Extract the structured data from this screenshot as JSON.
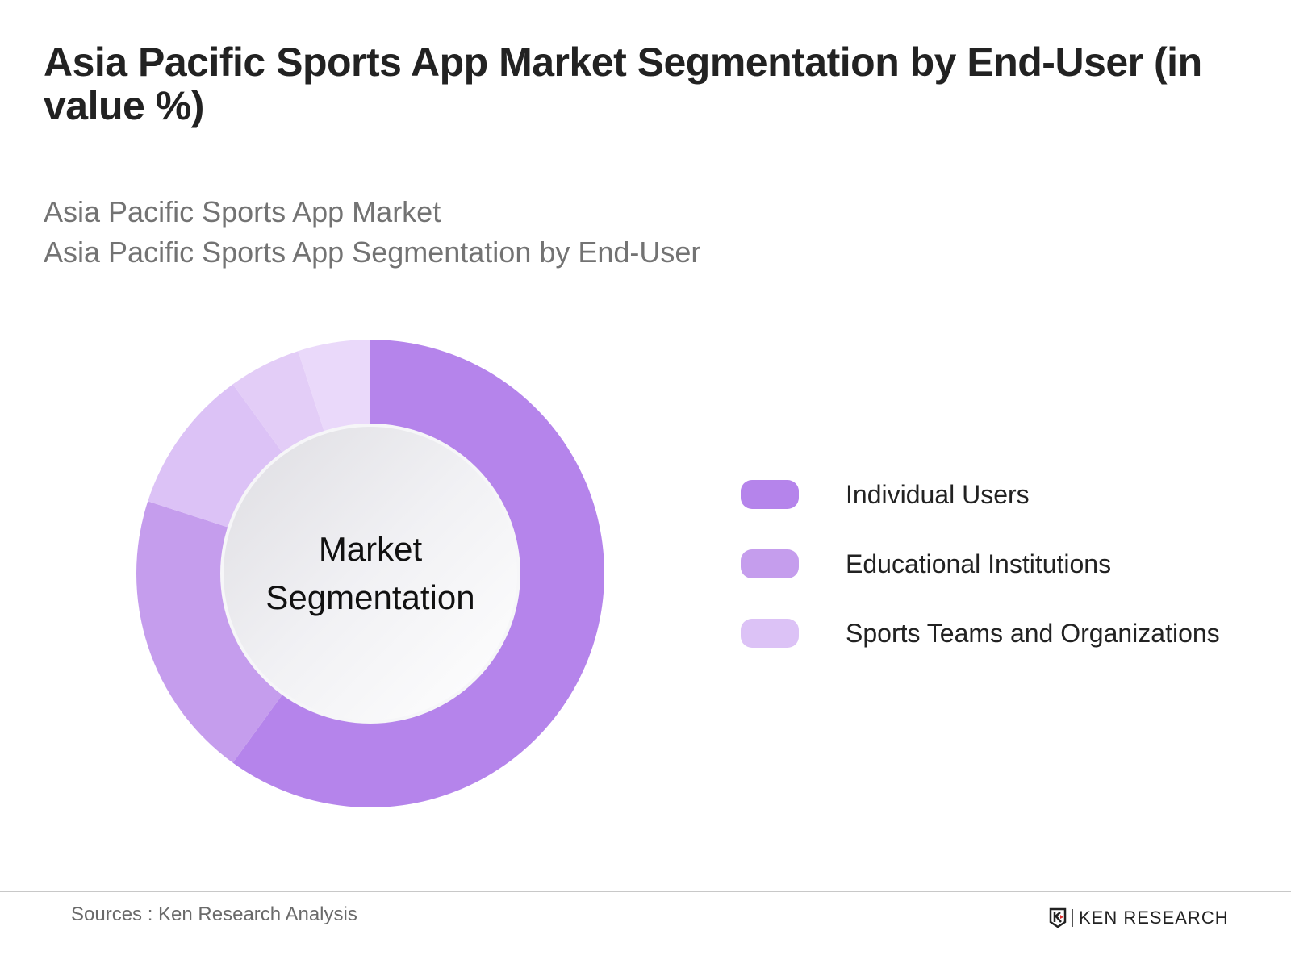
{
  "header": {
    "title": "Asia Pacific Sports App Market Segmentation by End-User (in value %)",
    "subtitle_line1": "Asia Pacific Sports App Market",
    "subtitle_line2": "Asia Pacific Sports App Segmentation by End-User"
  },
  "center_label": {
    "line1": "Market",
    "line2": "Segmentation"
  },
  "legend": [
    {
      "label": "Individual Users",
      "color": "#b584eb"
    },
    {
      "label": "Educational Institutions",
      "color": "#c59ded"
    },
    {
      "label": "Sports Teams and Organizations",
      "color": "#dcc2f6"
    }
  ],
  "footer": {
    "source": "Sources : Ken Research Analysis",
    "brand": "KEN RESEARCH"
  },
  "chart_data": {
    "type": "pie",
    "variant": "donut",
    "title": "Asia Pacific Sports App Market Segmentation by End-User (in value %)",
    "subtitle": [
      "Asia Pacific Sports App Market",
      "Asia Pacific Sports App Segmentation by End-User"
    ],
    "center_text": "Market Segmentation",
    "categories": [
      "Individual Users",
      "Educational Institutions",
      "Sports Teams and Organizations",
      "Unlabeled segment 4",
      "Unlabeled segment 5"
    ],
    "values": [
      60,
      20,
      10,
      5,
      5
    ],
    "colors": [
      "#b584eb",
      "#c59ded",
      "#dcc2f6",
      "#e3cdf7",
      "#ead9fa"
    ],
    "start_angle_deg": 0,
    "direction": "clockwise",
    "legend_position": "right",
    "legend_entries": [
      "Individual Users",
      "Educational Institutions",
      "Sports Teams and Organizations"
    ]
  }
}
